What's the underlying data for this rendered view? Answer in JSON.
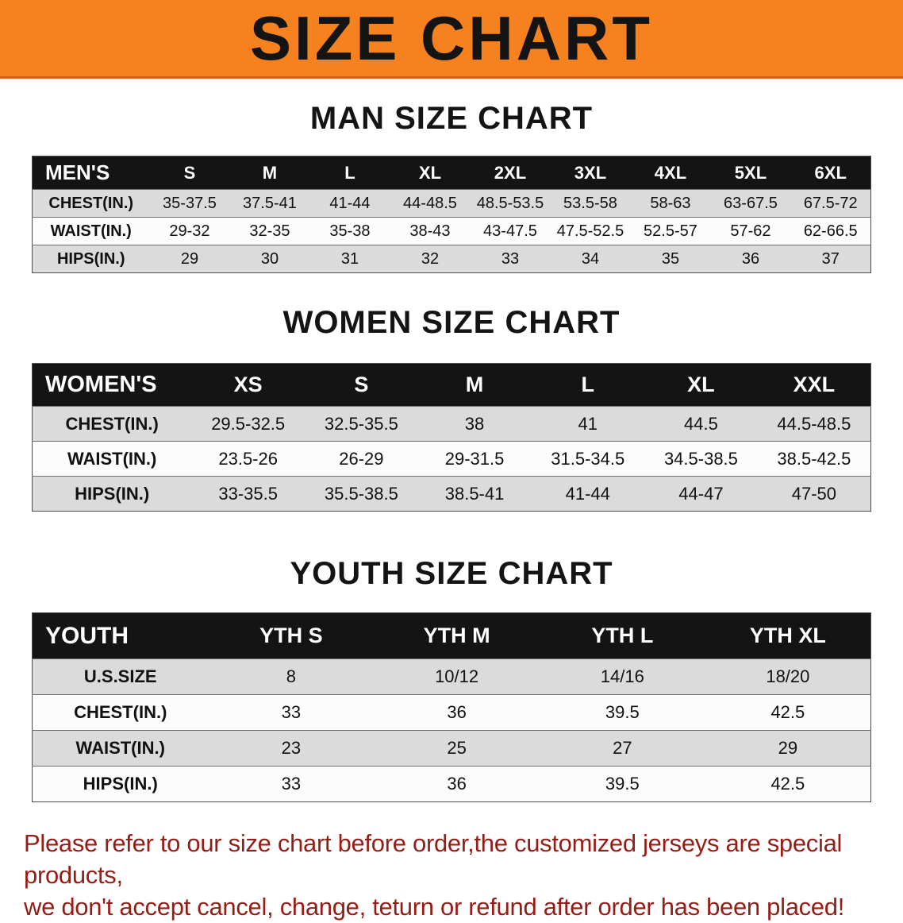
{
  "banner": {
    "title": "SIZE CHART",
    "background_color": "#f6821f",
    "title_color": "#141414"
  },
  "sections": [
    {
      "id": "men",
      "title": "MAN SIZE CHART",
      "header": [
        "MEN'S",
        "S",
        "M",
        "L",
        "XL",
        "2XL",
        "3XL",
        "4XL",
        "5XL",
        "6XL"
      ],
      "rows": [
        [
          "CHEST(IN.)",
          "35-37.5",
          "37.5-41",
          "41-44",
          "44-48.5",
          "48.5-53.5",
          "53.5-58",
          "58-63",
          "63-67.5",
          "67.5-72"
        ],
        [
          "WAIST(IN.)",
          "29-32",
          "32-35",
          "35-38",
          "38-43",
          "43-47.5",
          "47.5-52.5",
          "52.5-57",
          "57-62",
          "62-66.5"
        ],
        [
          "HIPS(IN.)",
          "29",
          "30",
          "31",
          "32",
          "33",
          "34",
          "35",
          "36",
          "37"
        ]
      ]
    },
    {
      "id": "women",
      "title": "WOMEN SIZE CHART",
      "header": [
        "WOMEN'S",
        "XS",
        "S",
        "M",
        "L",
        "XL",
        "XXL"
      ],
      "rows": [
        [
          "CHEST(IN.)",
          "29.5-32.5",
          "32.5-35.5",
          "38",
          "41",
          "44.5",
          "44.5-48.5"
        ],
        [
          "WAIST(IN.)",
          "23.5-26",
          "26-29",
          "29-31.5",
          "31.5-34.5",
          "34.5-38.5",
          "38.5-42.5"
        ],
        [
          "HIPS(IN.)",
          "33-35.5",
          "35.5-38.5",
          "38.5-41",
          "41-44",
          "44-47",
          "47-50"
        ]
      ]
    },
    {
      "id": "youth",
      "title": "YOUTH SIZE CHART",
      "header": [
        "YOUTH",
        "YTH S",
        "YTH M",
        "YTH L",
        "YTH XL"
      ],
      "rows": [
        [
          "U.S.SIZE",
          "8",
          "10/12",
          "14/16",
          "18/20"
        ],
        [
          "CHEST(IN.)",
          "33",
          "36",
          "39.5",
          "42.5"
        ],
        [
          "WAIST(IN.)",
          "23",
          "25",
          "27",
          "29"
        ],
        [
          "HIPS(IN.)",
          "33",
          "36",
          "39.5",
          "42.5"
        ]
      ]
    }
  ],
  "footer": {
    "line1": "Please refer to our size chart before order,the customized jerseys are special products,",
    "line2": "we don't accept cancel, change, teturn or refund after order has been placed!",
    "text_color": "#951d15"
  },
  "colors": {
    "table_header_bg": "#141414",
    "table_header_text": "#ffffff",
    "row_shaded": "#dbdbdb",
    "row_plain": "#fcfcfc"
  }
}
